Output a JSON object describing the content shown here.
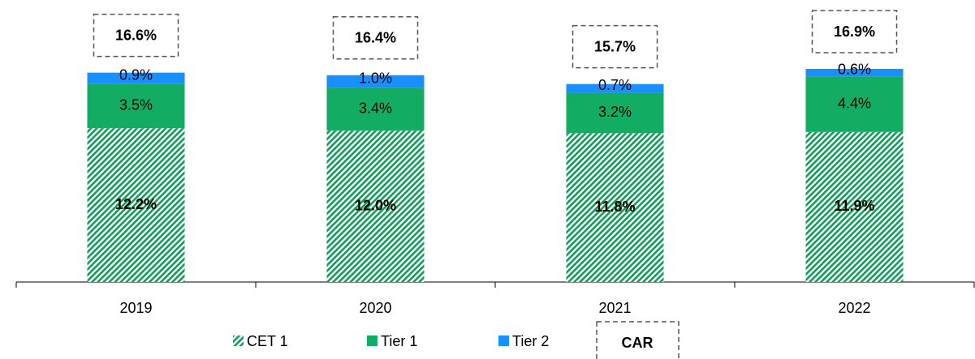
{
  "chart_data": {
    "type": "stacked_bar",
    "categories": [
      "2019",
      "2020",
      "2021",
      "2022"
    ],
    "series": [
      {
        "name": "CET 1",
        "color": "#0f9d58",
        "pattern": "hatch",
        "values": [
          12.2,
          12.0,
          11.8,
          11.9
        ],
        "value_labels": [
          "12.2%",
          "12.0%",
          "11.8%",
          "11.9%"
        ]
      },
      {
        "name": "Tier 1",
        "color": "#12ad62",
        "values": [
          3.5,
          3.4,
          3.2,
          4.4
        ],
        "value_labels": [
          "3.5%",
          "3.4%",
          "3.2%",
          "4.4%"
        ]
      },
      {
        "name": "Tier 2",
        "color": "#1a8fff",
        "values": [
          0.9,
          1.0,
          0.7,
          0.6
        ],
        "value_labels": [
          "0.9%",
          "1.0%",
          "0.7%",
          "0.6%"
        ]
      }
    ],
    "total": {
      "name": "CAR",
      "values": [
        16.6,
        16.4,
        15.7,
        16.9
      ],
      "value_labels": [
        "16.6%",
        "16.4%",
        "15.7%",
        "16.9%"
      ]
    }
  }
}
